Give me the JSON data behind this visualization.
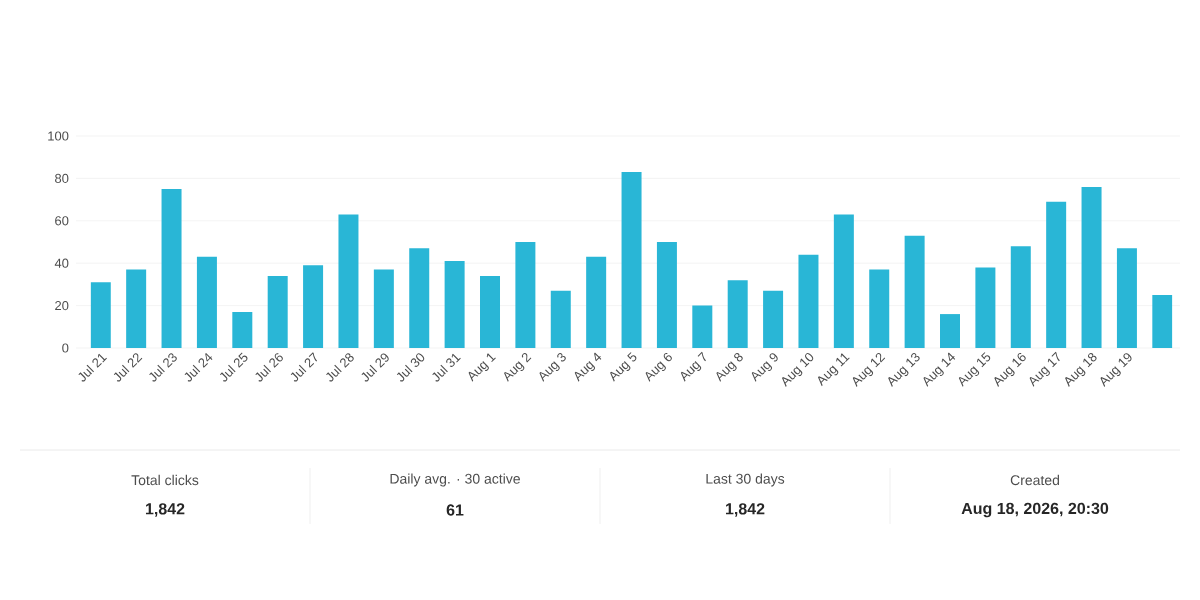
{
  "chart_data": {
    "type": "bar",
    "categories": [
      "Jul 21",
      "Jul 22",
      "Jul 23",
      "Jul 24",
      "Jul 25",
      "Jul 26",
      "Jul 27",
      "Jul 28",
      "Jul 29",
      "Jul 30",
      "Jul 31",
      "Aug 1",
      "Aug 2",
      "Aug 3",
      "Aug 4",
      "Aug 5",
      "Aug 6",
      "Aug 7",
      "Aug 8",
      "Aug 9",
      "Aug 10",
      "Aug 11",
      "Aug 12",
      "Aug 13",
      "Aug 14",
      "Aug 15",
      "Aug 16",
      "Aug 17",
      "Aug 18",
      "Aug 19",
      null
    ],
    "values": [
      31,
      37,
      75,
      43,
      17,
      34,
      39,
      63,
      37,
      47,
      41,
      34,
      50,
      27,
      43,
      83,
      50,
      20,
      32,
      27,
      44,
      63,
      37,
      53,
      16,
      38,
      48,
      69,
      76,
      47,
      25
    ],
    "color": "#29b6d6",
    "ylim": [
      0,
      100
    ],
    "yticks": [
      0,
      20,
      40,
      60,
      80,
      100
    ],
    "grid": "y",
    "annotations": [
      "Total clicks",
      "1,842",
      "Daily avg. · 30 active",
      "61",
      "Last 30 days",
      "1,842",
      "Created",
      "Aug 18, 2026, 20:30"
    ]
  }
}
